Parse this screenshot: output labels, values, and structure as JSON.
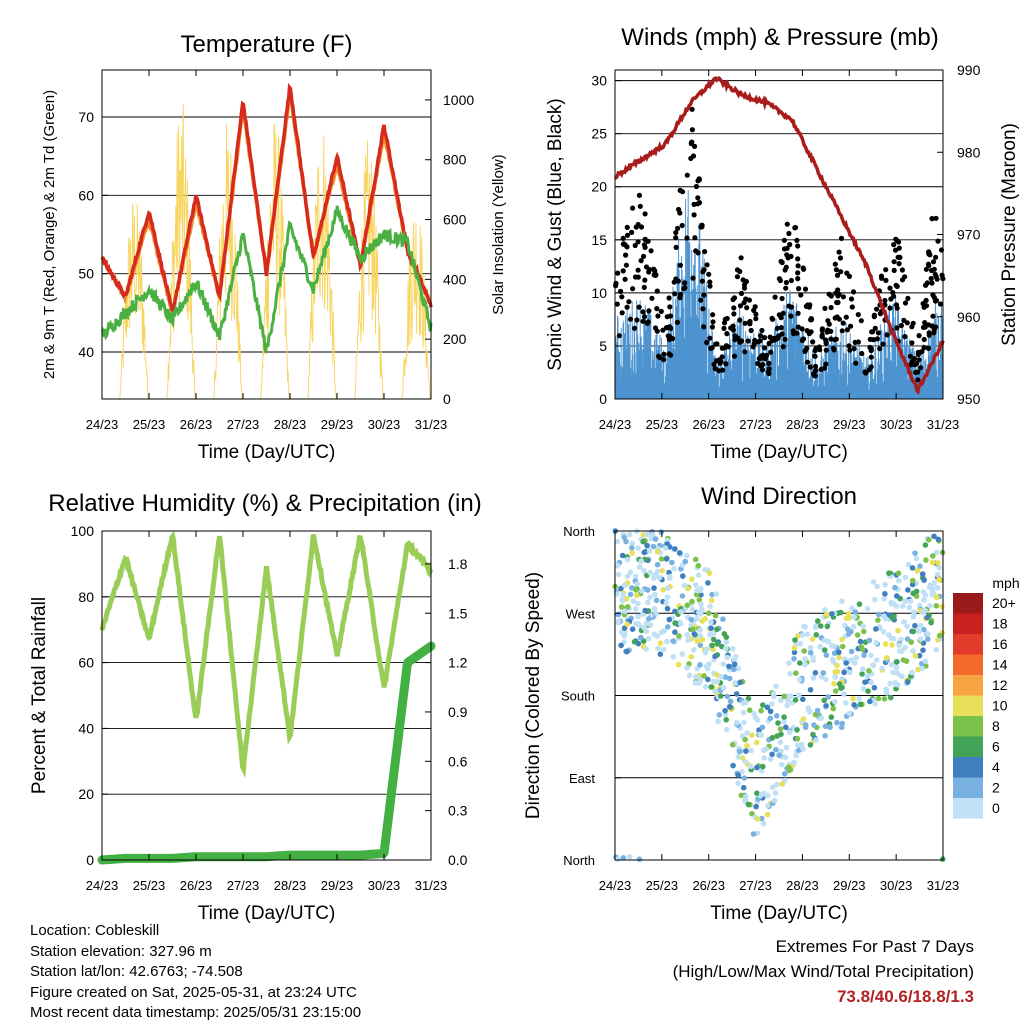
{
  "x_ticks": [
    "24/23",
    "25/23",
    "26/23",
    "27/23",
    "28/23",
    "29/23",
    "30/23",
    "31/23"
  ],
  "panels": {
    "temperature": {
      "title": "Temperature (F)",
      "ylabel_left": "2m & 9m T (Red, Orange) & 2m Td (Green)",
      "ylabel_right": "Solar Insolation (Yellow)",
      "xlabel": "Time (Day/UTC)",
      "left_ticks": [
        "40",
        "50",
        "60",
        "70"
      ],
      "right_ticks": [
        "0",
        "200",
        "400",
        "600",
        "800",
        "1000"
      ]
    },
    "wind": {
      "title": "Winds (mph) & Pressure (mb)",
      "ylabel_left": "Sonic Wind & Gust (Blue, Black)",
      "ylabel_right": "Station Pressure (Maroon)",
      "xlabel": "Time (Day/UTC)",
      "left_ticks": [
        "0",
        "5",
        "10",
        "15",
        "20",
        "25",
        "30"
      ],
      "right_ticks": [
        "950",
        "960",
        "970",
        "980",
        "990"
      ]
    },
    "humidity": {
      "title": "Relative Humidity (%) & Precipitation (in)",
      "ylabel_left": "Percent & Total Rainfall",
      "xlabel": "Time (Day/UTC)",
      "left_ticks": [
        "0",
        "20",
        "40",
        "60",
        "80",
        "100"
      ],
      "right_ticks": [
        "0.0",
        "0.3",
        "0.6",
        "0.9",
        "1.2",
        "1.5",
        "1.8"
      ]
    },
    "direction": {
      "title": "Wind Direction",
      "ylabel_left": "Direction (Colored By Speed)",
      "xlabel": "Time (Day/UTC)",
      "dir_ticks": [
        "North",
        "East",
        "South",
        "West",
        "North"
      ],
      "legend_title": "mph",
      "legend_labels": [
        "20+",
        "18",
        "16",
        "14",
        "12",
        "10",
        "8",
        "6",
        "4",
        "2",
        "0"
      ],
      "legend_colors": [
        "#9b1b1b",
        "#c8201f",
        "#e23b2a",
        "#f26a2c",
        "#f9a443",
        "#e9e05a",
        "#7cc24a",
        "#43a358",
        "#3f7fbf",
        "#79b2e0",
        "#bfe0f5"
      ]
    }
  },
  "info": {
    "location": "Location: Cobleskill",
    "elevation": "Station elevation: 327.96 m",
    "latlon": "Station lat/lon: 42.6763; -74.508",
    "created": "Figure created on Sat, 2025-05-31, at 23:24 UTC",
    "recent": "Most recent data timestamp: 2025/05/31 23:15:00"
  },
  "extremes": {
    "line1": "Extremes For Past 7 Days",
    "line2": "(High/Low/Max Wind/Total Precipitation)",
    "values": "73.8/40.6/18.8/1.3"
  },
  "chart_data": [
    {
      "type": "line",
      "title": "Temperature (F)",
      "x": [
        "24/23",
        "24/23+6h",
        "25/23",
        "25/23+12h",
        "26/23",
        "26/23+12h",
        "27/23",
        "27/23+12h",
        "28/23",
        "28/23+12h",
        "29/23",
        "29/23+12h",
        "30/23",
        "30/23+12h",
        "31/23"
      ],
      "ylim": [
        34,
        76
      ],
      "y2lim": [
        0,
        1100
      ],
      "series": [
        {
          "name": "2m T (Red)",
          "values": [
            52,
            47,
            58,
            45,
            60,
            47,
            72,
            50,
            74,
            52,
            65,
            51,
            69,
            53,
            46
          ]
        },
        {
          "name": "9m T (Orange)",
          "values": [
            52,
            47,
            57,
            45,
            59,
            47,
            71,
            50,
            73,
            52,
            64,
            51,
            68,
            53,
            46
          ]
        },
        {
          "name": "2m Td (Green)",
          "values": [
            42,
            45,
            48,
            44,
            49,
            42,
            55,
            40,
            56,
            48,
            58,
            52,
            55,
            54,
            43
          ]
        },
        {
          "name": "Solar Insolation (Yellow)",
          "values": [
            0,
            100,
            950,
            50,
            1050,
            80,
            900,
            60,
            1000,
            100,
            950,
            200,
            850,
            150,
            0
          ]
        }
      ]
    },
    {
      "type": "line",
      "title": "Winds (mph) & Pressure (mb)",
      "x": [
        "24/23",
        "25/23",
        "25/23+12h",
        "26/23",
        "26/23+12h",
        "27/23",
        "27/23+12h",
        "28/23",
        "28/23+12h",
        "29/23",
        "29/23+12h",
        "30/23",
        "30/23+12h",
        "31/23"
      ],
      "ylim": [
        0,
        31
      ],
      "y2lim": [
        950,
        990
      ],
      "series": [
        {
          "name": "Sonic Wind (Blue)",
          "values": [
            6,
            8,
            4,
            19,
            3,
            7,
            4,
            9,
            3,
            6,
            3,
            8,
            3,
            9
          ]
        },
        {
          "name": "Gust (Black)",
          "values": [
            13,
            20,
            6,
            28,
            5,
            13,
            5,
            18,
            5,
            15,
            5,
            17,
            5,
            25
          ]
        },
        {
          "name": "Station Pressure (Maroon)",
          "values": [
            977,
            979,
            981,
            986,
            989,
            987,
            986,
            984,
            978,
            972,
            966,
            958,
            951,
            957
          ]
        }
      ]
    },
    {
      "type": "line",
      "title": "Relative Humidity (%) & Precipitation (in)",
      "x": [
        "24/23",
        "24/23+6h",
        "25/23",
        "25/23+12h",
        "26/23",
        "26/23+12h",
        "27/23",
        "27/23+12h",
        "28/23",
        "28/23+12h",
        "29/23",
        "29/23+12h",
        "30/23",
        "30/23+12h",
        "31/23"
      ],
      "ylim": [
        0,
        100
      ],
      "y2lim": [
        0,
        2
      ],
      "series": [
        {
          "name": "Relative Humidity (%)",
          "values": [
            70,
            92,
            67,
            99,
            42,
            99,
            27,
            89,
            37,
            99,
            62,
            99,
            52,
            96,
            88
          ]
        },
        {
          "name": "Total Rainfall (in)",
          "values": [
            0,
            0.01,
            0.01,
            0.01,
            0.02,
            0.02,
            0.02,
            0.02,
            0.03,
            0.03,
            0.03,
            0.03,
            0.04,
            1.2,
            1.3
          ]
        }
      ]
    },
    {
      "type": "scatter",
      "title": "Wind Direction",
      "x": [
        "24/23",
        "25/23",
        "26/23",
        "27/23",
        "28/23",
        "29/23",
        "30/23",
        "31/23"
      ],
      "y_ticks": [
        "North",
        "East",
        "South",
        "West",
        "North"
      ],
      "series": [
        {
          "name": "Direction",
          "values": [
            300,
            290,
            250,
            90,
            190,
            220,
            250,
            300
          ]
        }
      ]
    }
  ]
}
